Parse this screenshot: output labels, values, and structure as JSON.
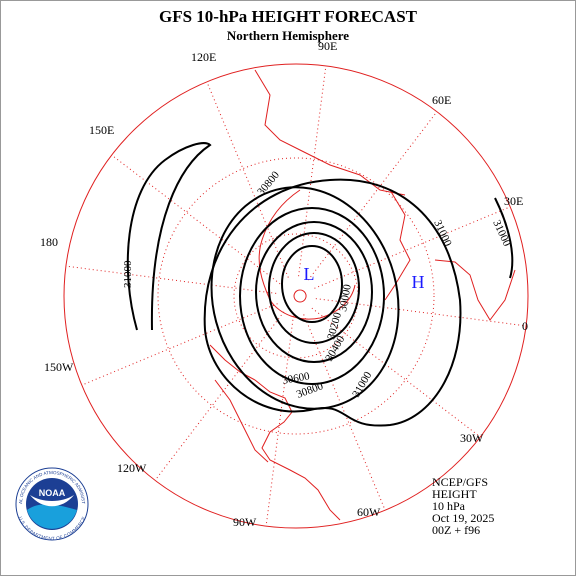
{
  "header": {
    "title": "GFS 10-hPa HEIGHT FORECAST",
    "subtitle": "Northern Hemisphere"
  },
  "longitude_labels": [
    "90E",
    "120E",
    "60E",
    "150E",
    "30E",
    "180",
    "0",
    "150W",
    "30W",
    "120W",
    "90W",
    "60W"
  ],
  "contour_labels": [
    "30800",
    "31000",
    "31000",
    "31000",
    "30000",
    "30200",
    "30400",
    "30600",
    "30800",
    "31000"
  ],
  "centers": [
    "L",
    "H"
  ],
  "info": [
    "NCEP/GFS",
    "HEIGHT",
    "10 hPa",
    "Oct 19, 2025",
    "00Z + f96"
  ],
  "logo": {
    "name": "NOAA",
    "ring_top": "NATIONAL OCEANIC AND ATMOSPHERIC ADMINISTRATION",
    "ring_bottom": "U.S. DEPARTMENT OF COMMERCE"
  }
}
